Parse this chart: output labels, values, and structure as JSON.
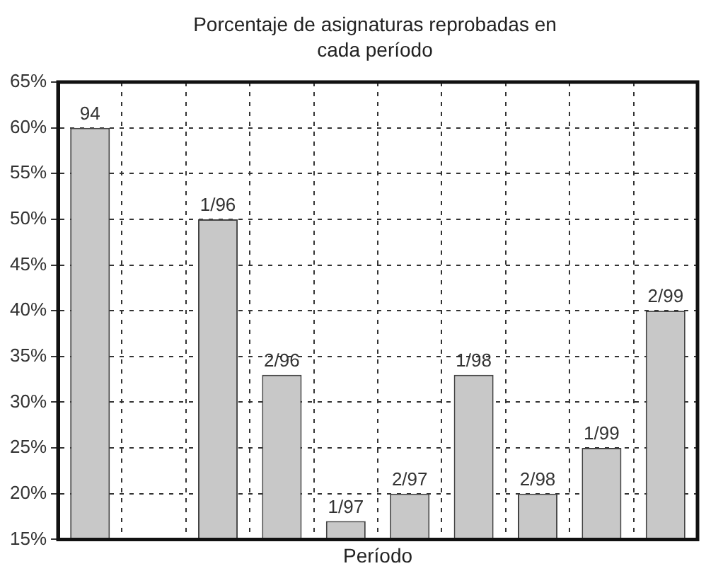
{
  "chart_data": {
    "type": "bar",
    "title": "Porcentaje de asignaturas reprobadas en cada período",
    "xlabel": "Período",
    "categories": [
      "94",
      null,
      "1/96",
      "2/96",
      "1/97",
      "2/97",
      "1/98",
      "2/98",
      "1/99",
      "2/99"
    ],
    "values": [
      60,
      null,
      50,
      33,
      17,
      20,
      33,
      20,
      25,
      40
    ],
    "color": "#c8c8c8",
    "ylim": [
      15,
      65
    ],
    "yticks": [
      {
        "value": 15,
        "label": "15%"
      },
      {
        "value": 20,
        "label": "20%"
      },
      {
        "value": 25,
        "label": "25%"
      },
      {
        "value": 30,
        "label": "30%"
      },
      {
        "value": 35,
        "label": "35%"
      },
      {
        "value": 40,
        "label": "40%"
      },
      {
        "value": 45,
        "label": "45%"
      },
      {
        "value": 50,
        "label": "50%"
      },
      {
        "value": 55,
        "label": "55%"
      },
      {
        "value": 60,
        "label": "60%"
      },
      {
        "value": 65,
        "label": "65%"
      }
    ],
    "grid": true,
    "tick_labels": "y"
  }
}
